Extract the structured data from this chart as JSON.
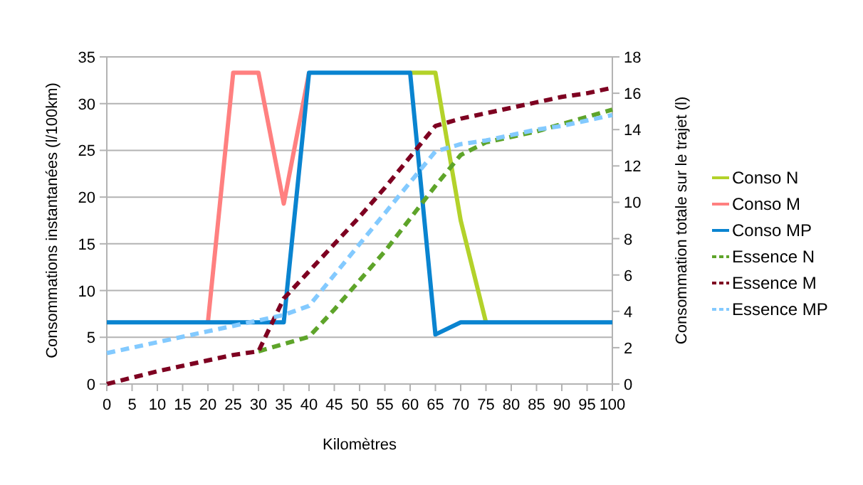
{
  "chart_data": {
    "type": "line",
    "xlabel": "Kilomètres",
    "ylabel": "Consommations instantanées (l/100km)",
    "y2label": "Consommation totale sur le trajet (l)",
    "x": [
      0,
      5,
      10,
      15,
      20,
      25,
      30,
      35,
      40,
      45,
      50,
      55,
      60,
      65,
      70,
      75,
      80,
      85,
      90,
      95,
      100
    ],
    "xlim": [
      0,
      100
    ],
    "xticks": [
      0,
      5,
      10,
      15,
      20,
      25,
      30,
      35,
      40,
      45,
      50,
      55,
      60,
      65,
      70,
      75,
      80,
      85,
      90,
      95,
      100
    ],
    "ylim": [
      0,
      35
    ],
    "yticks": [
      0,
      5,
      10,
      15,
      20,
      25,
      30,
      35
    ],
    "y2lim": [
      0,
      18
    ],
    "y2ticks": [
      0,
      2,
      4,
      6,
      8,
      10,
      12,
      14,
      16,
      18
    ],
    "grid": "y",
    "legend": "right",
    "series": [
      {
        "name": "Conso N",
        "color": "#b3d22a",
        "line_style": "solid",
        "values": [
          null,
          null,
          null,
          null,
          null,
          null,
          null,
          null,
          null,
          null,
          null,
          null,
          33.3,
          33.3,
          17.5,
          6.6,
          null,
          null,
          null,
          null,
          null
        ]
      },
      {
        "name": "Conso M",
        "color": "#ff8080",
        "line_style": "solid",
        "values": [
          null,
          null,
          null,
          null,
          6.6,
          33.3,
          33.3,
          19.3,
          33.3,
          null,
          null,
          null,
          null,
          null,
          null,
          null,
          null,
          null,
          null,
          null,
          null
        ]
      },
      {
        "name": "Conso MP",
        "color": "#0a84d0",
        "line_style": "solid",
        "values": [
          6.6,
          6.6,
          6.6,
          6.6,
          6.6,
          6.6,
          6.6,
          6.6,
          33.3,
          33.3,
          33.3,
          33.3,
          33.3,
          5.3,
          6.6,
          6.6,
          6.6,
          6.6,
          6.6,
          6.6,
          6.6
        ]
      },
      {
        "name": "Essence N",
        "color": "#5ea42a",
        "line_style": "dashed",
        "axis": "y2",
        "values": [
          null,
          null,
          null,
          null,
          null,
          null,
          1.8,
          2.2,
          2.6,
          4.1,
          5.7,
          7.3,
          9.1,
          10.9,
          12.6,
          13.3,
          13.6,
          13.9,
          14.3,
          14.7,
          15.1
        ]
      },
      {
        "name": "Essence M",
        "color": "#7e0021",
        "line_style": "dashed",
        "axis": "y2",
        "values": [
          0,
          0.35,
          0.7,
          1.0,
          1.3,
          1.6,
          1.8,
          4.7,
          6.2,
          7.7,
          9.2,
          10.8,
          12.5,
          14.2,
          14.6,
          14.9,
          15.2,
          15.5,
          15.8,
          16.0,
          16.3
        ]
      },
      {
        "name": "Essence MP",
        "color": "#83caff",
        "line_style": "dashed",
        "axis": "y2",
        "values": [
          1.7,
          2.0,
          2.3,
          2.6,
          2.9,
          3.2,
          3.5,
          3.8,
          4.3,
          6.0,
          7.7,
          9.4,
          11.1,
          12.8,
          13.2,
          13.4,
          13.7,
          14.0,
          14.2,
          14.5,
          14.8
        ]
      }
    ]
  }
}
